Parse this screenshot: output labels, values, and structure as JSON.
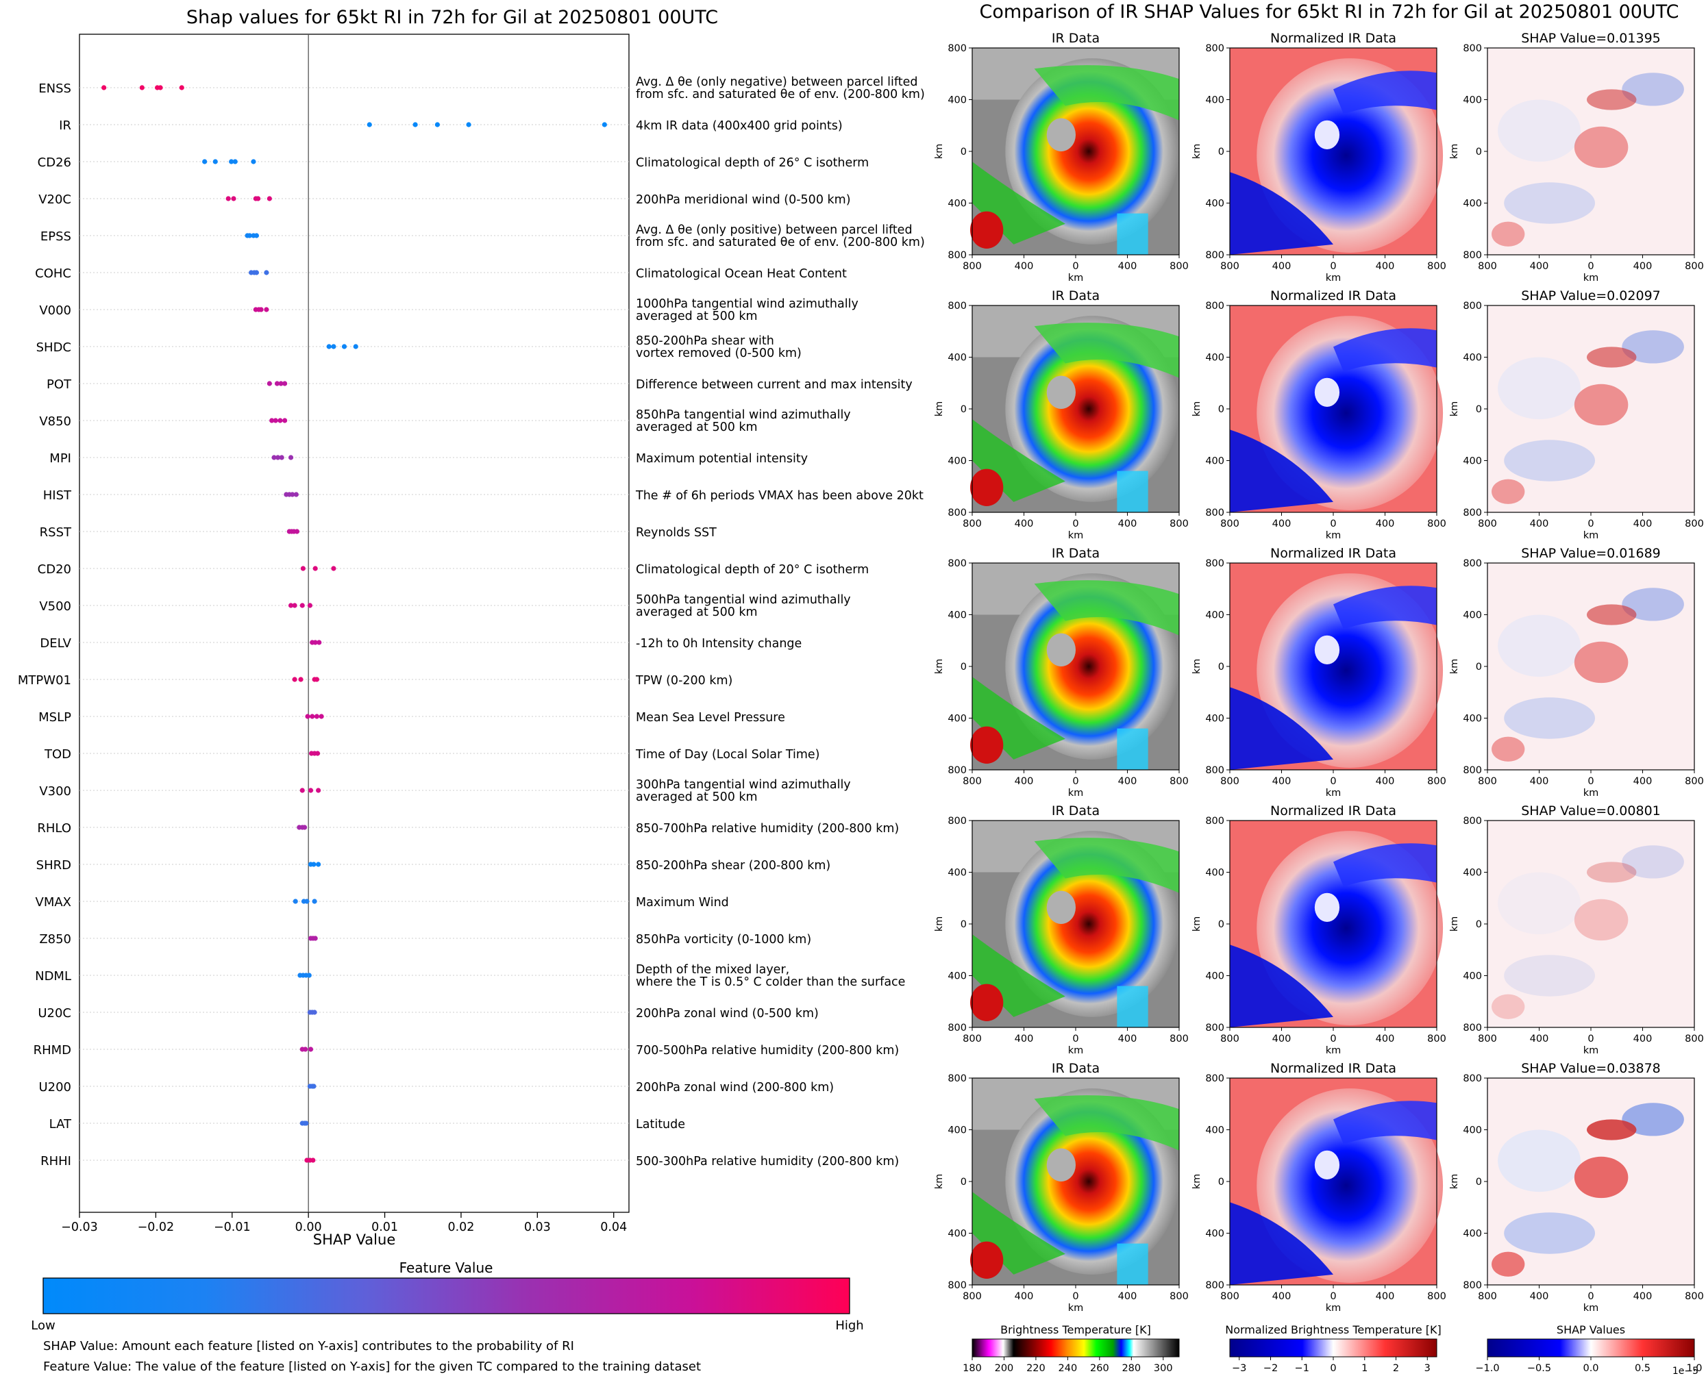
{
  "chart_data": [
    {
      "type": "scatter",
      "title": "Shap values for 65kt RI in 72h for Gil at 20250801 00UTC",
      "xlabel": "SHAP Value",
      "xlim": [
        -0.03,
        0.042
      ],
      "xticks": [
        -0.03,
        -0.02,
        -0.01,
        0.0,
        0.01,
        0.02,
        0.03,
        0.04
      ],
      "xtick_labels": [
        "−0.03",
        "−0.02",
        "−0.01",
        "0.00",
        "0.01",
        "0.02",
        "0.03",
        "0.04"
      ],
      "grid": "horizontal-dotted",
      "features": [
        {
          "name": "ENSS",
          "desc": [
            "Avg. Δ θe (only negative) between parcel lifted",
            "from sfc. and saturated θe of env. (200-800 km)"
          ],
          "values": [
            -0.0268,
            -0.0218,
            -0.0198,
            -0.0194,
            -0.0166
          ],
          "fv": 0.95
        },
        {
          "name": "IR",
          "desc": [
            "4km IR data (400x400 grid points)"
          ],
          "values": [
            0.008,
            0.014,
            0.0169,
            0.021,
            0.0388
          ],
          "fv": 0.05
        },
        {
          "name": "CD26",
          "desc": [
            "Climatological depth of 26° C isotherm"
          ],
          "values": [
            -0.0136,
            -0.0122,
            -0.0101,
            -0.0096,
            -0.0072
          ],
          "fv": 0.1
        },
        {
          "name": "V20C",
          "desc": [
            "200hPa meridional wind (0-500 km)"
          ],
          "values": [
            -0.0105,
            -0.0098,
            -0.0069,
            -0.0066,
            -0.0051
          ],
          "fv": 0.88
        },
        {
          "name": "EPSS",
          "desc": [
            "Avg. Δ θe (only positive) between parcel lifted",
            "from sfc. and saturated θe of env. (200-800 km)"
          ],
          "values": [
            -0.008,
            -0.0077,
            -0.0072,
            -0.0068
          ],
          "fv": 0.12
        },
        {
          "name": "COHC",
          "desc": [
            "Climatological Ocean Heat Content"
          ],
          "values": [
            -0.0075,
            -0.0071,
            -0.0068,
            -0.0055
          ],
          "fv": 0.3
        },
        {
          "name": "V000",
          "desc": [
            "1000hPa tangential wind azimuthally",
            "averaged at 500 km"
          ],
          "values": [
            -0.0069,
            -0.0065,
            -0.0062,
            -0.0055
          ],
          "fv": 0.82
        },
        {
          "name": "SHDC",
          "desc": [
            "850-200hPa shear with",
            "vortex removed (0-500 km)"
          ],
          "values": [
            0.0027,
            0.0033,
            0.0047,
            0.0062
          ],
          "fv": 0.1
        },
        {
          "name": "POT",
          "desc": [
            "Difference between current and max intensity"
          ],
          "values": [
            -0.0051,
            -0.0041,
            -0.0036,
            -0.0031
          ],
          "fv": 0.75
        },
        {
          "name": "V850",
          "desc": [
            "850hPa tangential wind azimuthally",
            "averaged at 500 km"
          ],
          "values": [
            -0.0048,
            -0.0043,
            -0.0037,
            -0.0031
          ],
          "fv": 0.8
        },
        {
          "name": "MPI",
          "desc": [
            "Maximum potential intensity"
          ],
          "values": [
            -0.0045,
            -0.004,
            -0.0035,
            -0.0023
          ],
          "fv": 0.6
        },
        {
          "name": "HIST",
          "desc": [
            "The # of 6h periods VMAX has been above 20kt"
          ],
          "values": [
            -0.0029,
            -0.0025,
            -0.0021,
            -0.0016
          ],
          "fv": 0.6
        },
        {
          "name": "RSST",
          "desc": [
            "Reynolds SST"
          ],
          "values": [
            -0.0025,
            -0.0022,
            -0.0019,
            -0.0015
          ],
          "fv": 0.78
        },
        {
          "name": "CD20",
          "desc": [
            "Climatological depth of 20° C isotherm"
          ],
          "values": [
            -0.0007,
            0.0009,
            0.0033
          ],
          "fv": 0.88
        },
        {
          "name": "V500",
          "desc": [
            "500hPa tangential wind azimuthally",
            "averaged at 500 km"
          ],
          "values": [
            -0.0023,
            -0.0018,
            -0.0008,
            0.0002
          ],
          "fv": 0.85
        },
        {
          "name": "DELV",
          "desc": [
            "-12h to 0h Intensity change"
          ],
          "values": [
            0.0005,
            0.0009,
            0.0014
          ],
          "fv": 0.8
        },
        {
          "name": "MTPW01",
          "desc": [
            "TPW (0-200 km)"
          ],
          "values": [
            -0.0018,
            -0.001,
            0.0008,
            0.0011
          ],
          "fv": 0.9
        },
        {
          "name": "MSLP",
          "desc": [
            "Mean Sea Level Pressure"
          ],
          "values": [
            -0.0001,
            0.0005,
            0.0011,
            0.0017
          ],
          "fv": 0.82
        },
        {
          "name": "TOD",
          "desc": [
            "Time of Day (Local Solar Time)"
          ],
          "values": [
            0.0004,
            0.0008,
            0.0012
          ],
          "fv": 0.85
        },
        {
          "name": "V300",
          "desc": [
            "300hPa tangential wind azimuthally",
            "averaged at 500 km"
          ],
          "values": [
            -0.0008,
            0.0003,
            0.0013
          ],
          "fv": 0.85
        },
        {
          "name": "RHLO",
          "desc": [
            "850-700hPa relative humidity (200-800 km)"
          ],
          "values": [
            -0.0012,
            -0.0008,
            -0.0005
          ],
          "fv": 0.65
        },
        {
          "name": "SHRD",
          "desc": [
            "850-200hPa shear (200-800 km)"
          ],
          "values": [
            0.0003,
            0.0007,
            0.0013
          ],
          "fv": 0.1
        },
        {
          "name": "VMAX",
          "desc": [
            "Maximum Wind"
          ],
          "values": [
            -0.0017,
            -0.0006,
            -0.0002,
            0.0008
          ],
          "fv": 0.2
        },
        {
          "name": "Z850",
          "desc": [
            "850hPa vorticity (0-1000 km)"
          ],
          "values": [
            0.0003,
            0.0006,
            0.0009
          ],
          "fv": 0.7
        },
        {
          "name": "NDML",
          "desc": [
            "Depth of the mixed layer,",
            "where the T is 0.5° C colder than the surface"
          ],
          "values": [
            -0.0011,
            -0.0007,
            -0.0003,
            0.0001
          ],
          "fv": 0.15
        },
        {
          "name": "U20C",
          "desc": [
            "200hPa zonal wind (0-500 km)"
          ],
          "values": [
            0.0002,
            0.0005,
            0.0008
          ],
          "fv": 0.35
        },
        {
          "name": "RHMD",
          "desc": [
            "700-500hPa relative humidity (200-800 km)"
          ],
          "values": [
            -0.0008,
            -0.0004,
            0.0003
          ],
          "fv": 0.75
        },
        {
          "name": "U200",
          "desc": [
            "200hPa zonal wind (200-800 km)"
          ],
          "values": [
            0.0002,
            0.0005,
            0.0007
          ],
          "fv": 0.3
        },
        {
          "name": "LAT",
          "desc": [
            "Latitude"
          ],
          "values": [
            -0.0008,
            -0.0005,
            -0.0003
          ],
          "fv": 0.3
        },
        {
          "name": "RHHI",
          "desc": [
            "500-300hPa relative humidity (200-800 km)"
          ],
          "values": [
            -0.0002,
            0.0002,
            0.0006
          ],
          "fv": 0.9
        }
      ],
      "colorbar": {
        "title": "Feature Value",
        "low_label": "Low",
        "high_label": "High",
        "colors": [
          "#008afb",
          "#1c82f3",
          "#5f60d9",
          "#9a31b1",
          "#c8119a",
          "#ff0055"
        ]
      },
      "notes": [
        "SHAP Value: Amount each feature [listed on Y-axis] contributes to the probability of RI",
        "Feature Value: The value of the feature [listed on Y-axis] for the given TC compared to the training dataset"
      ]
    },
    {
      "type": "heatmap",
      "title": "Comparison of IR SHAP Values for 65kt RI in 72h for Gil at 20250801 00UTC",
      "panel_titles": [
        "IR Data",
        "Normalized IR Data"
      ],
      "shap_values": [
        "0.01395",
        "0.02097",
        "0.01689",
        "0.00801",
        "0.03878"
      ],
      "shap_prefix": "SHAP Value=",
      "axis_label": "km",
      "axis_ticks": [
        "800",
        "400",
        "0",
        "400",
        "800"
      ],
      "colorbars": [
        {
          "title": "Brightness Temperature [K]",
          "ticks": [
            "180",
            "200",
            "220",
            "240",
            "260",
            "280",
            "300"
          ],
          "range": [
            180,
            310
          ]
        },
        {
          "title": "Normalized Brightness Temperature [K]",
          "ticks": [
            "−3",
            "−2",
            "−1",
            "0",
            "1",
            "2",
            "3"
          ],
          "range": [
            -3.3,
            3.3
          ]
        },
        {
          "title": "SHAP Values",
          "ticks": [
            "−1.0",
            "−0.5",
            "0.0",
            "0.5",
            "1.0"
          ],
          "range": [
            -1,
            1
          ],
          "exponent": "1e−5"
        }
      ]
    }
  ]
}
